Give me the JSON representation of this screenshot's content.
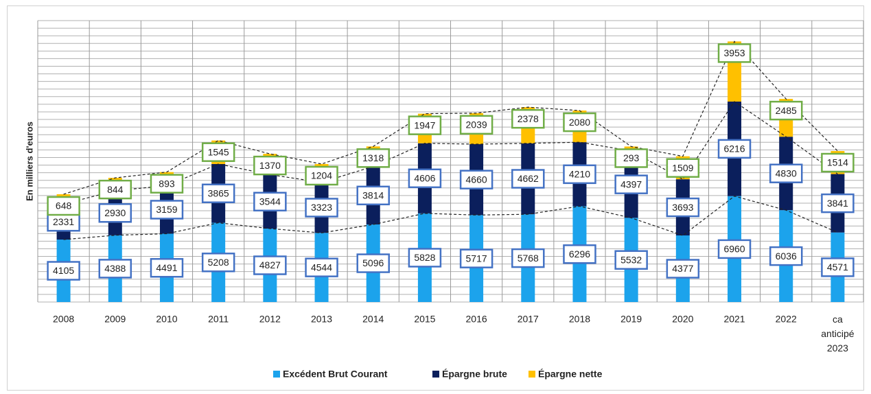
{
  "chart_data": {
    "type": "stacked_bar",
    "y_label": "En milliers d'euros",
    "categories": [
      "2008",
      "2009",
      "2010",
      "2011",
      "2012",
      "2013",
      "2014",
      "2015",
      "2016",
      "2017",
      "2018",
      "2019",
      "2020",
      "2021",
      "2022",
      "ca anticipé 2023"
    ],
    "series": [
      {
        "name": "Excédent Brut Courant",
        "color": "#1CA3EC",
        "values": [
          4105,
          4388,
          4491,
          5208,
          4827,
          4544,
          5096,
          5828,
          5717,
          5768,
          6296,
          5532,
          4377,
          6960,
          6036,
          4571
        ]
      },
      {
        "name": "Épargne brute",
        "color": "#0B1F5C",
        "values": [
          2331,
          2930,
          3159,
          3865,
          3544,
          3323,
          3814,
          4606,
          4660,
          4662,
          4210,
          4397,
          3693,
          6216,
          4830,
          3841
        ]
      },
      {
        "name": "Épargne nette",
        "color": "#FFC000",
        "values": [
          648,
          844,
          893,
          1545,
          1370,
          1204,
          1318,
          1947,
          2039,
          2378,
          2080,
          293,
          1509,
          3953,
          2485,
          1514
        ]
      }
    ],
    "ylim": [
      0,
      18500
    ],
    "yticks": [
      0,
      500,
      1000,
      1500,
      2000,
      2500,
      3000,
      3500,
      4000,
      4500,
      5000,
      5500,
      6000,
      6500,
      7000,
      7500,
      8000,
      8500,
      9000,
      9500,
      10000,
      10500,
      11000,
      11500,
      12000,
      12500,
      13000,
      13500,
      14000,
      14500,
      15000,
      15500,
      16000,
      16500,
      17000,
      17500,
      18000,
      18500
    ],
    "grid": true,
    "legend": "bottom"
  }
}
